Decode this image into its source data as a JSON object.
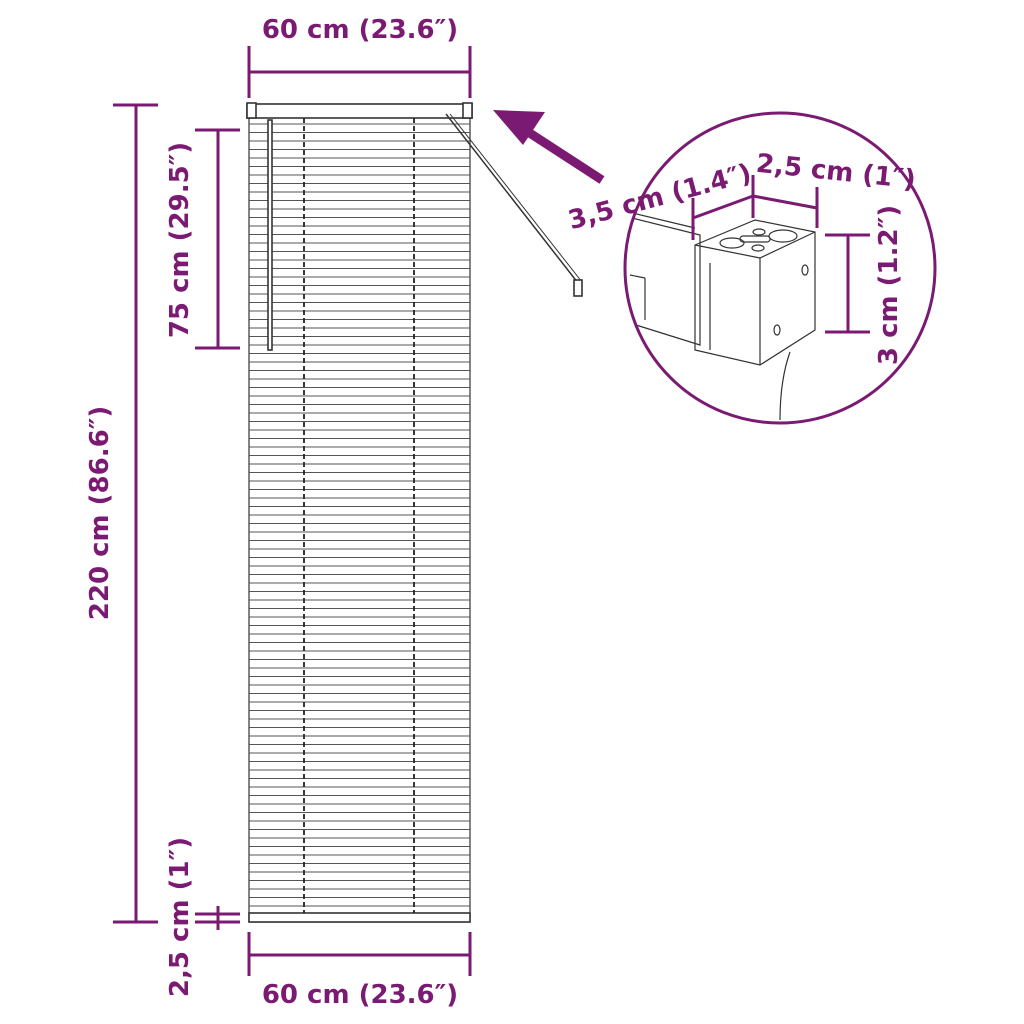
{
  "accent_color": "#7b1a72",
  "dimensions": {
    "top_width": "60 cm (23.6″)",
    "bottom_width": "60 cm (23.6″)",
    "total_height": "220 cm (86.6″)",
    "wand_length": "75 cm (29.5″)",
    "bottom_rail": "2,5 cm (1″)"
  },
  "detail": {
    "depth": "3,5 cm (1.4″)",
    "width": "2,5 cm (1″)",
    "height": "3 cm (1.2″)"
  }
}
